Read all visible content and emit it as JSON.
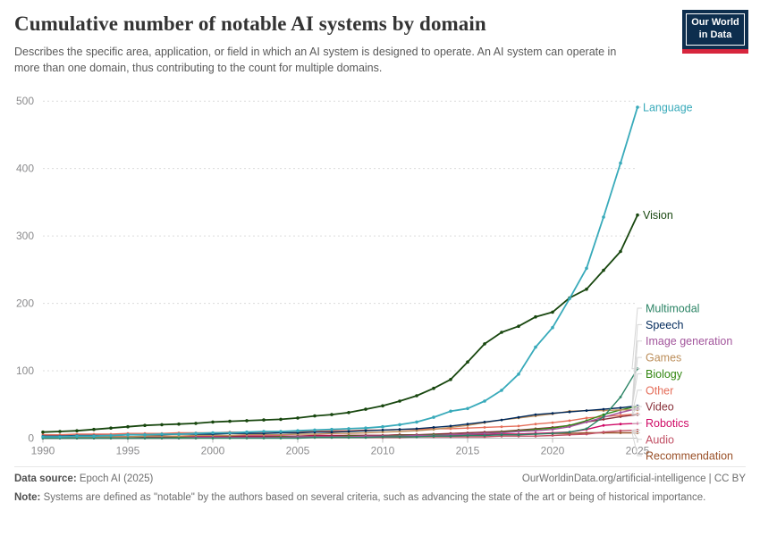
{
  "header": {
    "title": "Cumulative number of notable AI systems by domain",
    "subtitle": "Describes the specific area, application, or field in which an AI system is designed to operate. An AI system can operate in more than one domain, thus contributing to the count for multiple domains.",
    "logo": {
      "line1": "Our World",
      "line2": "in Data",
      "bg_color": "#0d2e4e",
      "bar_color": "#d7263d"
    }
  },
  "chart_data": {
    "type": "line",
    "title": "Cumulative number of notable AI systems by domain",
    "xlabel": "",
    "ylabel": "",
    "ylim": [
      0,
      500
    ],
    "yticks": [
      0,
      100,
      200,
      300,
      400,
      500
    ],
    "xticks": [
      1990,
      1995,
      2000,
      2005,
      2010,
      2015,
      2020,
      2025
    ],
    "grid": "dashed horizontal gridlines",
    "legend_position": "labels at right edge of lines",
    "x": [
      1990,
      1991,
      1992,
      1993,
      1994,
      1995,
      1996,
      1997,
      1998,
      1999,
      2000,
      2001,
      2002,
      2003,
      2004,
      2005,
      2006,
      2007,
      2008,
      2009,
      2010,
      2011,
      2012,
      2013,
      2014,
      2015,
      2016,
      2017,
      2018,
      2019,
      2020,
      2021,
      2022,
      2023,
      2024,
      2025
    ],
    "series": [
      {
        "name": "Language",
        "color": "#38AABA",
        "values": [
          2,
          2,
          3,
          3,
          4,
          5,
          5,
          6,
          6,
          7,
          8,
          8,
          9,
          10,
          10,
          11,
          12,
          13,
          14,
          15,
          17,
          20,
          24,
          31,
          40,
          44,
          55,
          71,
          95,
          135,
          164,
          207,
          252,
          328,
          408,
          491
        ]
      },
      {
        "name": "Vision",
        "color": "#18470F",
        "values": [
          9,
          10,
          11,
          13,
          15,
          17,
          19,
          20,
          21,
          22,
          24,
          25,
          26,
          27,
          28,
          30,
          33,
          35,
          38,
          43,
          48,
          55,
          63,
          74,
          87,
          113,
          140,
          157,
          166,
          180,
          187,
          208,
          221,
          249,
          277,
          331
        ]
      },
      {
        "name": "Multimodal",
        "color": "#2C8465",
        "values": [
          0,
          0,
          0,
          0,
          0,
          0,
          0,
          0,
          0,
          0,
          0,
          0,
          0,
          0,
          0,
          0,
          1,
          1,
          1,
          1,
          2,
          2,
          2,
          3,
          3,
          4,
          4,
          5,
          5,
          6,
          7,
          9,
          14,
          32,
          61,
          103
        ]
      },
      {
        "name": "Speech",
        "color": "#00295B",
        "values": [
          3,
          3,
          4,
          4,
          4,
          5,
          5,
          5,
          6,
          6,
          6,
          7,
          7,
          7,
          8,
          8,
          9,
          9,
          10,
          11,
          12,
          13,
          14,
          16,
          18,
          21,
          24,
          27,
          31,
          35,
          37,
          39,
          41,
          43,
          45,
          48
        ]
      },
      {
        "name": "Image generation",
        "color": "#A2559C",
        "values": [
          0,
          0,
          0,
          0,
          0,
          0,
          0,
          0,
          0,
          1,
          1,
          1,
          1,
          1,
          1,
          2,
          2,
          2,
          2,
          3,
          3,
          3,
          4,
          4,
          5,
          6,
          7,
          8,
          10,
          11,
          13,
          17,
          24,
          31,
          38,
          44
        ]
      },
      {
        "name": "Games",
        "color": "#BC8E5A",
        "values": [
          1,
          1,
          1,
          2,
          2,
          2,
          3,
          3,
          3,
          4,
          4,
          4,
          5,
          5,
          5,
          6,
          6,
          7,
          7,
          8,
          9,
          10,
          11,
          13,
          16,
          19,
          23,
          27,
          30,
          33,
          36,
          40,
          41,
          41,
          42,
          42
        ]
      },
      {
        "name": "Biology",
        "color": "#338711",
        "values": [
          0,
          0,
          0,
          0,
          0,
          0,
          0,
          0,
          1,
          1,
          1,
          1,
          1,
          1,
          2,
          2,
          2,
          2,
          3,
          3,
          3,
          4,
          4,
          5,
          5,
          6,
          7,
          9,
          11,
          13,
          15,
          19,
          26,
          35,
          42,
          47
        ]
      },
      {
        "name": "Other",
        "color": "#E56E5A",
        "values": [
          5,
          5,
          6,
          6,
          6,
          7,
          7,
          7,
          8,
          8,
          8,
          9,
          9,
          9,
          10,
          10,
          10,
          11,
          11,
          12,
          12,
          13,
          13,
          14,
          14,
          15,
          16,
          17,
          18,
          21,
          23,
          26,
          30,
          32,
          34,
          36
        ]
      },
      {
        "name": "Video",
        "color": "#883039",
        "values": [
          0,
          0,
          0,
          0,
          1,
          1,
          1,
          1,
          1,
          1,
          1,
          2,
          2,
          2,
          2,
          3,
          3,
          3,
          4,
          4,
          4,
          5,
          5,
          6,
          7,
          8,
          9,
          10,
          12,
          14,
          16,
          19,
          24,
          28,
          32,
          35
        ]
      },
      {
        "name": "Robotics",
        "color": "#CF0A66",
        "values": [
          2,
          2,
          2,
          2,
          2,
          2,
          2,
          3,
          3,
          3,
          3,
          3,
          3,
          3,
          3,
          3,
          4,
          4,
          4,
          4,
          4,
          5,
          5,
          5,
          5,
          5,
          5,
          6,
          6,
          7,
          8,
          9,
          13,
          19,
          21,
          22
        ]
      },
      {
        "name": "Audio",
        "color": "#C15065",
        "values": [
          0,
          0,
          0,
          0,
          0,
          0,
          0,
          0,
          0,
          0,
          1,
          1,
          1,
          1,
          1,
          1,
          1,
          1,
          1,
          1,
          1,
          1,
          2,
          2,
          2,
          2,
          2,
          3,
          3,
          3,
          4,
          5,
          6,
          9,
          11,
          12
        ]
      },
      {
        "name": "Recommendation",
        "color": "#9A5129",
        "values": [
          1,
          1,
          1,
          1,
          2,
          2,
          2,
          2,
          2,
          2,
          2,
          3,
          3,
          3,
          3,
          3,
          3,
          3,
          3,
          4,
          4,
          4,
          4,
          4,
          5,
          5,
          5,
          6,
          6,
          7,
          7,
          7,
          8,
          8,
          8,
          8
        ]
      }
    ]
  },
  "footer": {
    "datasource_label": "Data source:",
    "datasource_value": " Epoch AI (2025)",
    "rights": "OurWorldinData.org/artificial-intelligence | CC BY",
    "note_label": "Note:",
    "note_value": " Systems are defined as \"notable\" by the authors based on several criteria, such as advancing the state of the art or being of historical importance."
  }
}
